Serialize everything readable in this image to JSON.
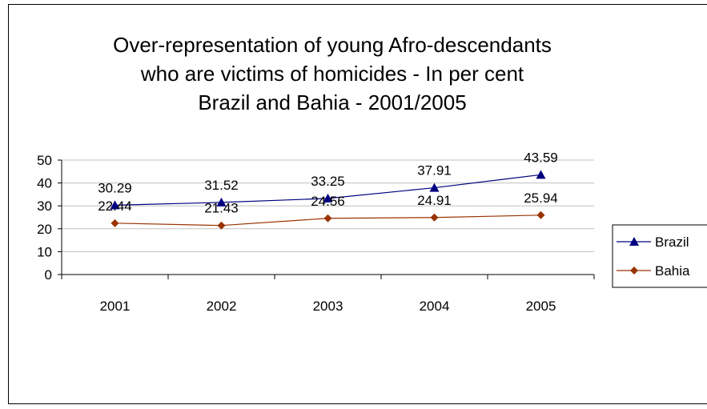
{
  "chart_data": {
    "type": "line",
    "title": [
      "Over-representation of young Afro-descendants",
      "who are victims of homicides - In per cent",
      "Brazil and Bahia - 2001/2005"
    ],
    "xlabel": "",
    "ylabel": "",
    "categories": [
      "2001",
      "2002",
      "2003",
      "2004",
      "2005"
    ],
    "ylim": [
      0,
      50
    ],
    "yticks": [
      "0",
      "10",
      "20",
      "30",
      "40",
      "50"
    ],
    "grid": true,
    "legend_position": "right",
    "series": [
      {
        "name": "Brazil",
        "values": [
          30.29,
          31.52,
          33.25,
          37.91,
          43.59
        ],
        "labels": [
          "30.29",
          "31.52",
          "33.25",
          "37.91",
          "43.59"
        ],
        "color": "#000080",
        "marker": "triangle"
      },
      {
        "name": "Bahia",
        "values": [
          22.44,
          21.43,
          24.56,
          24.91,
          25.94
        ],
        "labels": [
          "22.44",
          "21.43",
          "24.56",
          "24.91",
          "25.94"
        ],
        "color": "#993300",
        "marker": "diamond"
      }
    ]
  }
}
